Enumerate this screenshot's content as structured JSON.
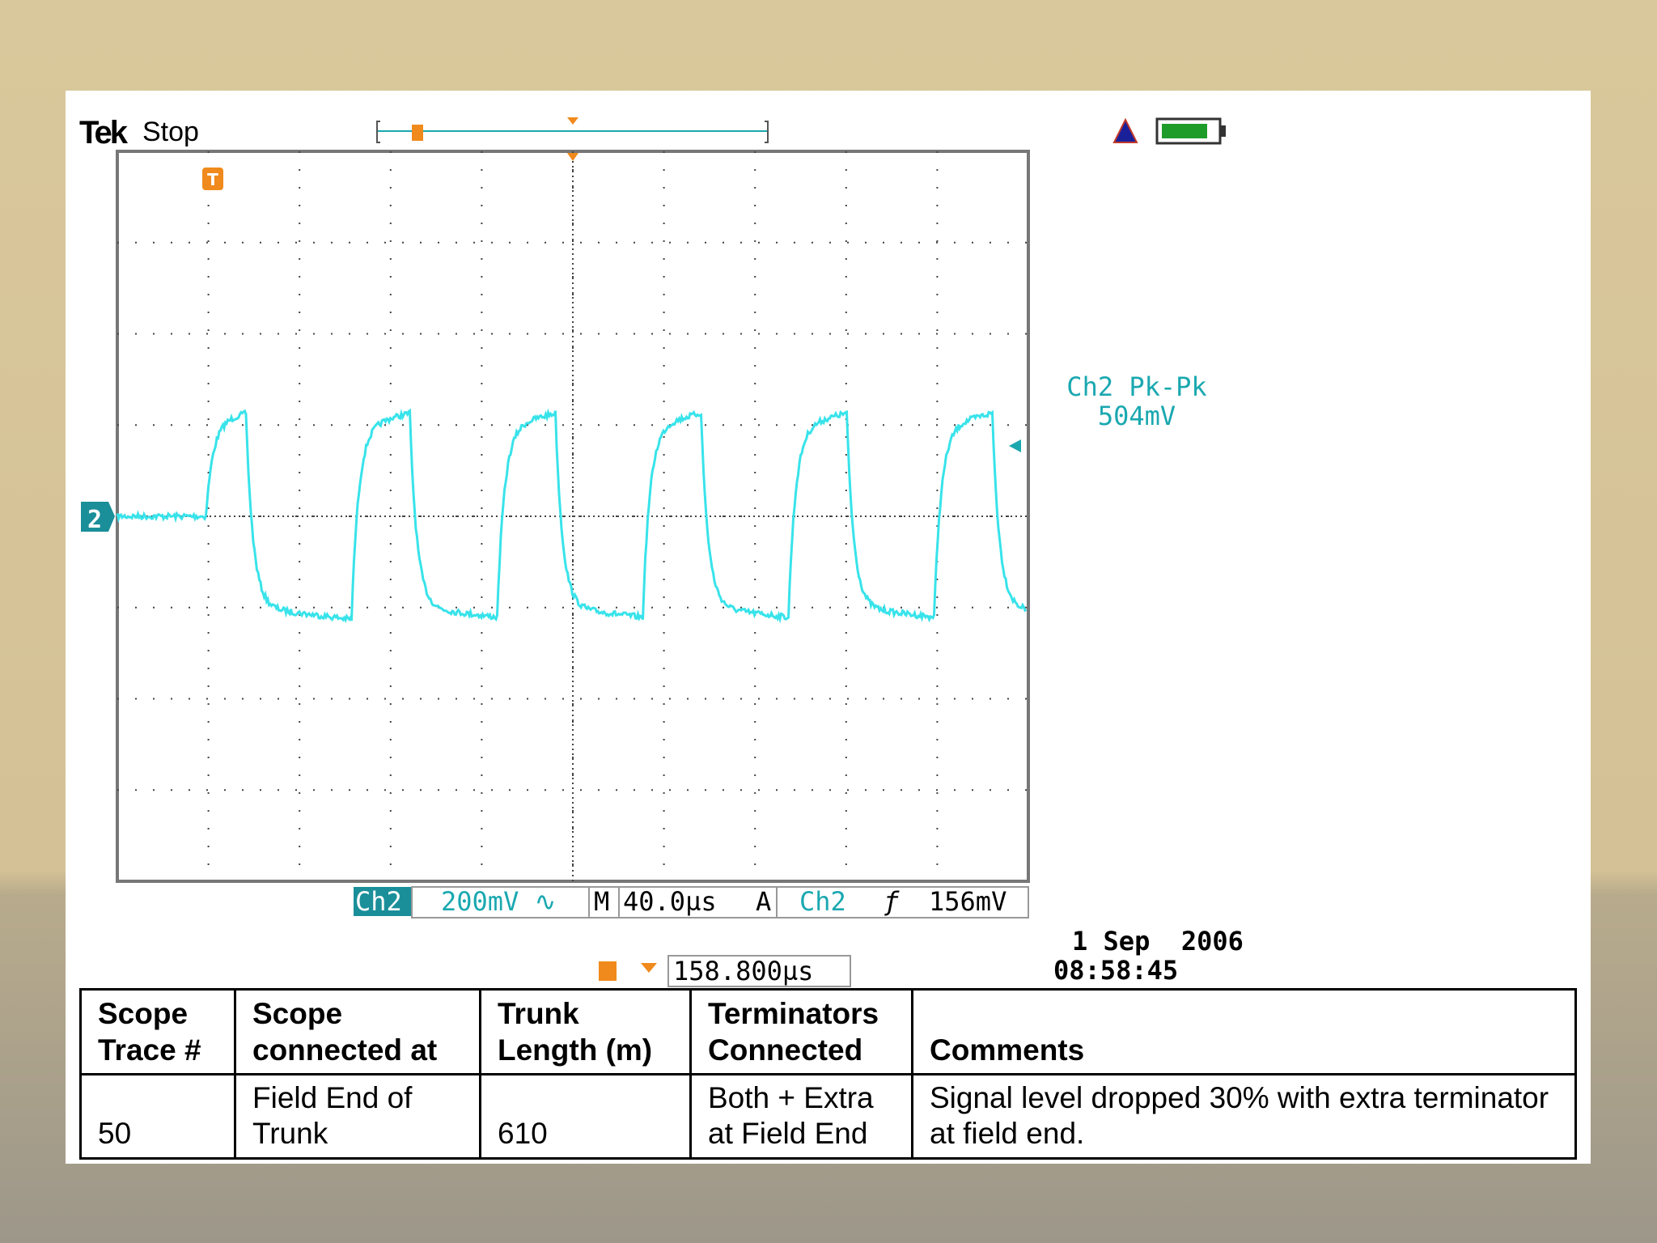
{
  "scope": {
    "brand": "Tek",
    "status": "Stop",
    "channel_marker": "2",
    "trigger_marker": "T",
    "measurement": {
      "label": "Ch2 Pk-Pk",
      "value": "504mV"
    },
    "readout": {
      "channel": "Ch2",
      "scale": "200mV ∿",
      "time_prefix": "M",
      "time_scale": "40.0µs",
      "trigger_prefix": "A",
      "trigger_channel": "Ch2",
      "trigger_slope": "ƒ",
      "trigger_level": "156mV"
    },
    "trigger_position": "158.800µs",
    "date": "1 Sep  2006",
    "time": "08:58:45"
  },
  "table": {
    "header": [
      "Scope Trace #",
      "Scope connected at",
      "Trunk Length (m)",
      "Terminators Connected",
      "Comments"
    ],
    "rows": [
      [
        "50",
        "Field End of Trunk",
        "610",
        "Both + Extra at Field End",
        "Signal level dropped 30% with extra terminator at field end."
      ]
    ]
  }
}
